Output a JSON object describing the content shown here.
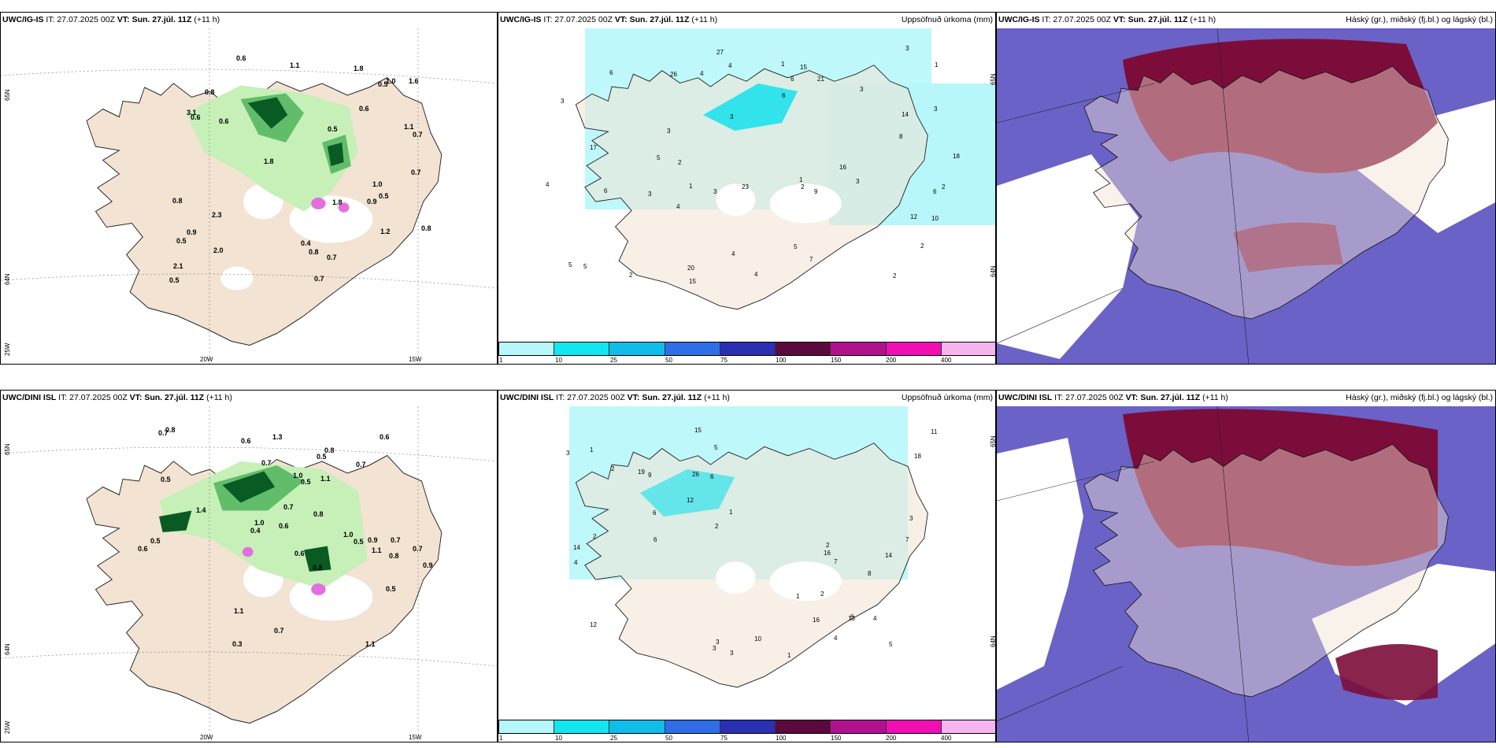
{
  "colors": {
    "land": "#f2e3d2",
    "white_glacier": "#ffffff",
    "precip_light_green": "#c6f0b8",
    "precip_mid_green": "#61bd6a",
    "precip_dark_green": "#0a5a23",
    "accum_cyan_light": "#b7f7fb",
    "accum_cyan": "#14e0ec",
    "cloud_high": "#7c0d3a",
    "cloud_mid": "#6a62c6",
    "cloud_low": "#3a34a8",
    "snow_pink": "#e46ee0"
  },
  "top": {
    "left": {
      "model": "UWC/IG-IS",
      "it_label": " IT: 27.07.2025 00Z ",
      "vt_label": "VT: Sun. 27.júl. 11Z",
      "lead": " (+11 h)",
      "lat_65": "65N",
      "lat_64": "64N",
      "lon_25": "25W",
      "lon_20": "20W",
      "lon_15": "15W",
      "values": [
        "0.5",
        "0.9",
        "1.0",
        "0.7",
        "0.9",
        "0.8",
        "0.8",
        "1.1",
        "0.5",
        "0.7",
        "0.6",
        "1.8",
        "2.0",
        "1.6",
        "0.6",
        "1.2",
        "0.8",
        "0.5",
        "0.7",
        "2.3",
        "1.8",
        "3.1",
        "1.8",
        "1.0",
        "0.6",
        "0.4",
        "0.7",
        "1.1",
        "0.8",
        "2.1",
        "0.6",
        "0.5",
        "0.5"
      ]
    },
    "middle": {
      "model": "UWC/IG-IS",
      "it_label": " IT: 27.07.2025 00Z ",
      "vt_label": "VT: Sun. 27.júl. 11Z",
      "lead": " (+11 h)",
      "title_right": "Uppsöfnuð úrkoma (mm)",
      "lat_65": "65N",
      "lat_64": "64N",
      "values": [
        "6",
        "2",
        "3",
        "4",
        "5",
        "17",
        "21",
        "26",
        "27",
        "15",
        "23",
        "20",
        "18",
        "14",
        "4",
        "6",
        "16",
        "5",
        "2",
        "7",
        "6",
        "3",
        "3",
        "8",
        "15",
        "10",
        "12",
        "9",
        "3",
        "1",
        "4",
        "2",
        "3",
        "2",
        "5",
        "4",
        "6",
        "3",
        "1",
        "1",
        "4",
        "3",
        "5",
        "2",
        "3",
        "1",
        "2",
        "4",
        "6",
        "3"
      ]
    },
    "right": {
      "model": "UWC/IG-IS",
      "it_label": " IT: 27.07.2025 00Z ",
      "vt_label": "VT: Sun. 27.júl. 11Z",
      "lead": " (+11 h)",
      "title_right": "Háský (gr.), miðský (fj.bl.) og lágský (bl.)"
    }
  },
  "bottom": {
    "left": {
      "model": "UWC/DINI ISL",
      "it_label": " IT: 27.07.2025 00Z ",
      "vt_label": "VT: Sun. 27.júl. 11Z",
      "lead": " (+11 h)",
      "lat_65": "65N",
      "lat_64": "64N",
      "lon_25": "25W",
      "lon_20": "20W",
      "lon_15": "15W",
      "values": [
        "0.5",
        "0.6",
        "0.9",
        "0.7",
        "0.6",
        "0.7",
        "0.8",
        "0.5",
        "0.8",
        "1.1",
        "0.7",
        "0.8",
        "1.3",
        "1.1",
        "1.4",
        "0.6",
        "1.1",
        "0.5",
        "1.0",
        "0.9",
        "0.7",
        "0.5",
        "0.6",
        "1.0",
        "0.7",
        "1.1",
        "0.8",
        "0.6",
        "0.4",
        "0.3",
        "1.0",
        "0.7",
        "0.5",
        "0.8",
        "0.7",
        "0.5"
      ]
    },
    "middle": {
      "model": "UWC/DINI ISL",
      "it_label": " IT: 27.07.2025 00Z ",
      "vt_label": "VT: Sun. 27.júl. 11Z",
      "lead": " (+11 h)",
      "title_right": "Uppsöfnuð úrkoma (mm)",
      "lat_65": "65N",
      "lat_64": "64N",
      "values": [
        "2",
        "1",
        "2",
        "3",
        "12",
        "16",
        "11",
        "14",
        "13",
        "14",
        "26",
        "18",
        "16",
        "9",
        "7",
        "8",
        "4",
        "3",
        "5",
        "6",
        "10",
        "19",
        "12",
        "15",
        "3",
        "4",
        "6",
        "7",
        "2",
        "1",
        "2",
        "3",
        "4",
        "5",
        "6",
        "3",
        "1",
        "2",
        "1",
        "6"
      ]
    },
    "right": {
      "model": "UWC/DINI ISL",
      "it_label": " IT: 27.07.2025 00Z ",
      "vt_label": "VT: Sun. 27.júl. 11Z",
      "lead": " (+11 h)",
      "title_right": "Háský (gr.), miðský (fj.bl.) og lágský (bl.)"
    }
  },
  "colorbar": {
    "labels": [
      "1",
      "10",
      "25",
      "50",
      "75",
      "100",
      "150",
      "200",
      "400"
    ],
    "colors": [
      "#b7f7fb",
      "#12e6ee",
      "#0fbde8",
      "#2f6ee6",
      "#2a2fb4",
      "#5a0a3c",
      "#b0128e",
      "#f10fb3",
      "#f7b5ef"
    ]
  }
}
